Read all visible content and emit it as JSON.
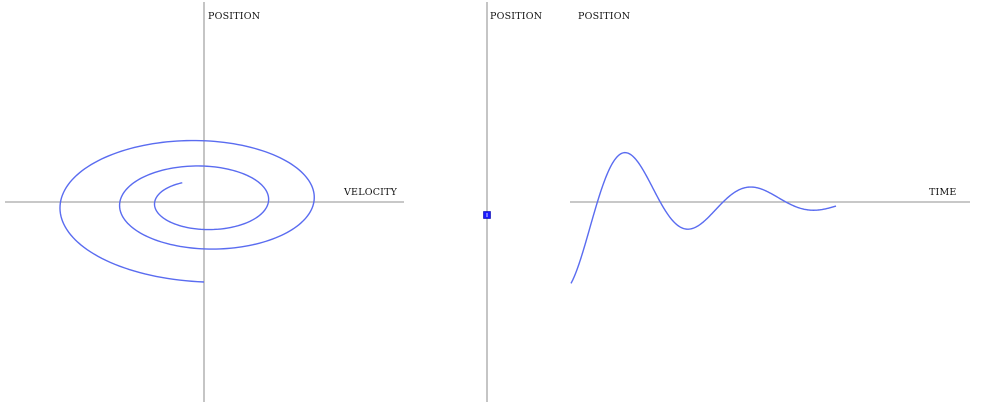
{
  "phase_panel": {
    "y_axis_label": "POSITION",
    "x_axis_label": "VELOCITY"
  },
  "center_panel": {
    "axis_label": "POSITION",
    "marker": "slider-handle",
    "marker_color": "#1a1aff"
  },
  "time_panel": {
    "y_axis_label": "POSITION",
    "x_axis_label": "TIME"
  },
  "colors": {
    "curve": "#5a6cf0",
    "axis": "#a6a6a6"
  }
}
